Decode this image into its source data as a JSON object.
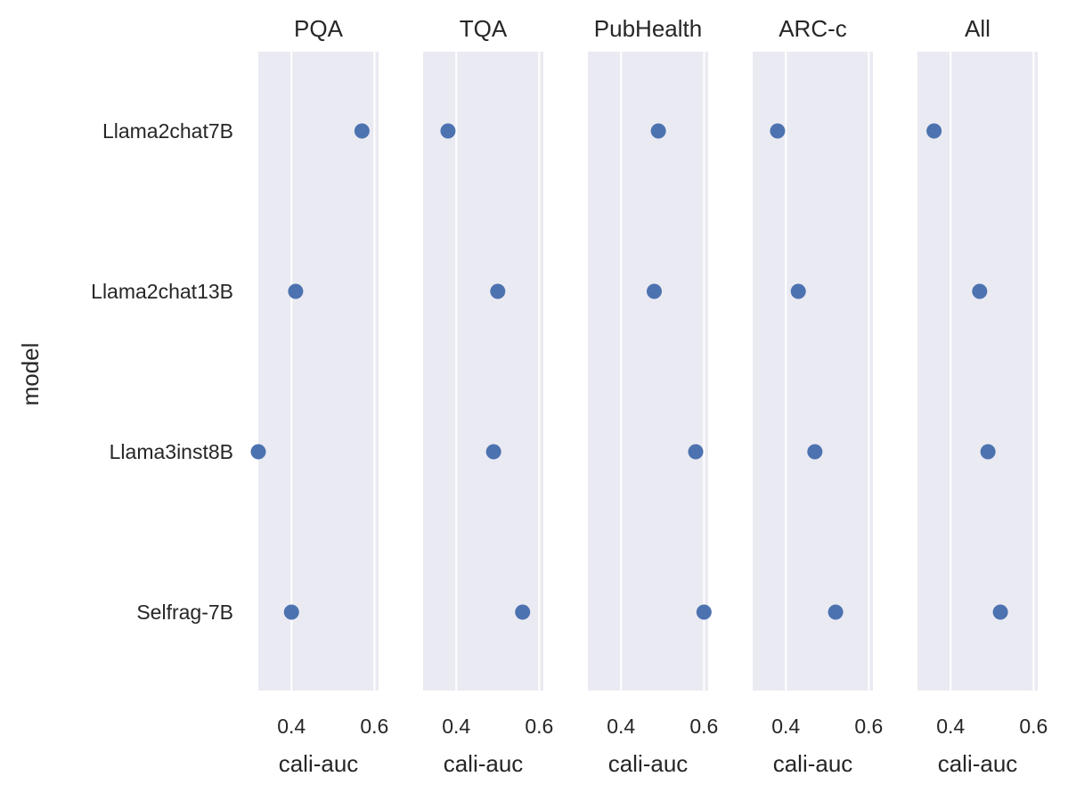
{
  "chart_data": {
    "type": "scatter",
    "ylabel": "model",
    "xlabel": "cali-auc",
    "categories": [
      "Llama2chat7B",
      "Llama2chat13B",
      "Llama3inst8B",
      "Selfrag-7B"
    ],
    "xlim": [
      0.32,
      0.61
    ],
    "xticks": [
      0.4,
      0.6
    ],
    "xtick_labels": [
      "0.4",
      "0.6"
    ],
    "grid": true,
    "colors": {
      "marker": "#4c72b0",
      "panel": "#eaeaf2"
    },
    "facets": [
      {
        "title": "PQA",
        "values": [
          0.57,
          0.41,
          0.32,
          0.4
        ]
      },
      {
        "title": "TQA",
        "values": [
          0.38,
          0.5,
          0.49,
          0.56
        ]
      },
      {
        "title": "PubHealth",
        "values": [
          0.49,
          0.48,
          0.58,
          0.6
        ]
      },
      {
        "title": "ARC-c",
        "values": [
          0.38,
          0.43,
          0.47,
          0.52
        ]
      },
      {
        "title": "All",
        "values": [
          0.36,
          0.47,
          0.49,
          0.52
        ]
      }
    ]
  }
}
